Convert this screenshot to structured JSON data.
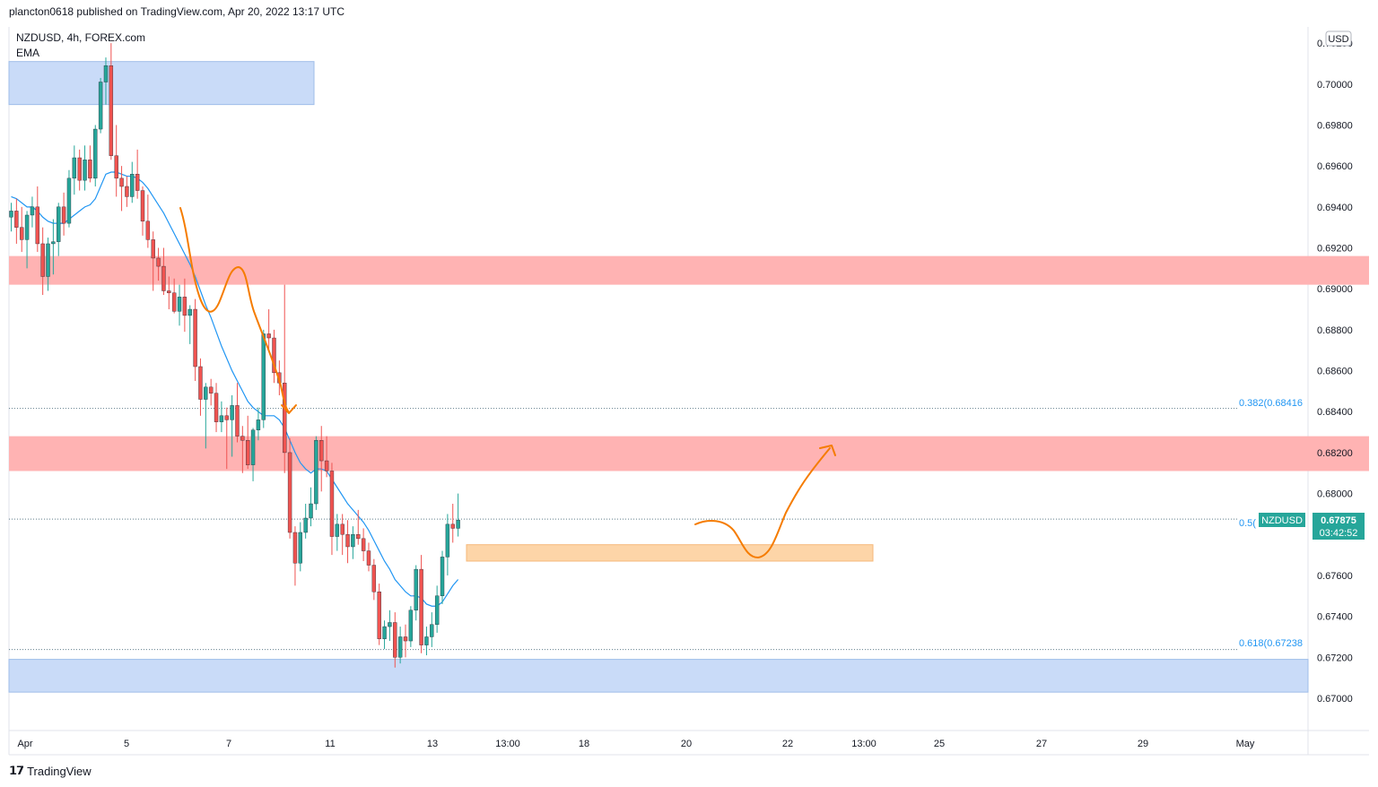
{
  "header": {
    "published": "plancton0618 published on TradingView.com, Apr 20, 2022 13:17 UTC"
  },
  "chart_title": {
    "symbol_line": "NZDUSD, 4h, FOREX.com",
    "indicator": "EMA"
  },
  "axis": {
    "currency_badge": "USD"
  },
  "footer": {
    "logo_text": "TradingView"
  },
  "price_label": {
    "symbol": "NZDUSD",
    "price": "0.67875",
    "countdown": "03:42:52"
  },
  "fib_labels": {
    "f382": "0.382(0.68416",
    "f5": "0.5(",
    "f618": "0.618(0.67238"
  },
  "colors": {
    "bull": "#26a69a",
    "bear": "#ef5350",
    "ema": "#2196f3",
    "arrow": "#f57c00",
    "zone_red": "#ffb3b3",
    "zone_blue": "#c9dbf8",
    "zone_orange": "#fdd5a8"
  },
  "chart_data": {
    "type": "candlestick",
    "symbol": "NZDUSD",
    "timeframe": "4h",
    "source": "FOREX.com",
    "ylim": [
      0.669,
      0.7025
    ],
    "y_ticks": [
      "0.70000",
      "0.69800",
      "0.69600",
      "0.69400",
      "0.69200",
      "0.69000",
      "0.68800",
      "0.68600",
      "0.68400",
      "0.68200",
      "0.68000",
      "0.67600",
      "0.67400",
      "0.67200",
      "0.67000"
    ],
    "y_top_partial": "0.70200",
    "x_ticks": [
      "Apr",
      "5",
      "7",
      "11",
      "13",
      "13:00",
      "18",
      "20",
      "22",
      "13:00",
      "25",
      "27",
      "29",
      "May"
    ],
    "fib_levels": [
      {
        "label": "0.382",
        "value": 0.68416
      },
      {
        "label": "0.5",
        "value": 0.67875
      },
      {
        "label": "0.618",
        "value": 0.67238
      }
    ],
    "zones": [
      {
        "kind": "supply",
        "from": 0.6902,
        "to": 0.6916
      },
      {
        "kind": "supply",
        "from": 0.6811,
        "to": 0.6828
      },
      {
        "kind": "demand",
        "from": 0.699,
        "to": 0.7011
      },
      {
        "kind": "demand",
        "from": 0.6703,
        "to": 0.6719
      },
      {
        "kind": "support",
        "from": 0.6767,
        "to": 0.6775
      }
    ],
    "candles": [
      [
        0.6935,
        0.6942,
        0.6928,
        0.6938
      ],
      [
        0.6938,
        0.6944,
        0.6922,
        0.693
      ],
      [
        0.693,
        0.694,
        0.6918,
        0.6924
      ],
      [
        0.6924,
        0.6938,
        0.691,
        0.6936
      ],
      [
        0.6936,
        0.6945,
        0.693,
        0.694
      ],
      [
        0.694,
        0.695,
        0.6918,
        0.6922
      ],
      [
        0.6922,
        0.693,
        0.6897,
        0.6906
      ],
      [
        0.6906,
        0.6925,
        0.6899,
        0.6922
      ],
      [
        0.6922,
        0.6934,
        0.6907,
        0.6923
      ],
      [
        0.6923,
        0.6942,
        0.6916,
        0.694
      ],
      [
        0.694,
        0.6947,
        0.6926,
        0.6932
      ],
      [
        0.6932,
        0.6958,
        0.693,
        0.6954
      ],
      [
        0.6954,
        0.697,
        0.6946,
        0.6964
      ],
      [
        0.6964,
        0.6968,
        0.6948,
        0.6953
      ],
      [
        0.6953,
        0.697,
        0.6948,
        0.6963
      ],
      [
        0.6963,
        0.697,
        0.6952,
        0.6954
      ],
      [
        0.6954,
        0.698,
        0.695,
        0.6978
      ],
      [
        0.6978,
        0.7003,
        0.6976,
        0.7001
      ],
      [
        0.7001,
        0.7013,
        0.699,
        0.7009
      ],
      [
        0.7009,
        0.702,
        0.6963,
        0.6965
      ],
      [
        0.6965,
        0.698,
        0.6945,
        0.6954
      ],
      [
        0.6954,
        0.696,
        0.6938,
        0.695
      ],
      [
        0.695,
        0.6955,
        0.694,
        0.6945
      ],
      [
        0.6945,
        0.6962,
        0.6942,
        0.6956
      ],
      [
        0.6956,
        0.6968,
        0.6944,
        0.6948
      ],
      [
        0.6948,
        0.695,
        0.6926,
        0.6933
      ],
      [
        0.6933,
        0.6946,
        0.692,
        0.6924
      ],
      [
        0.6924,
        0.6928,
        0.6899,
        0.6915
      ],
      [
        0.6915,
        0.692,
        0.6904,
        0.6911
      ],
      [
        0.6911,
        0.692,
        0.6897,
        0.6899
      ],
      [
        0.6899,
        0.6906,
        0.689,
        0.6898
      ],
      [
        0.6898,
        0.6905,
        0.6888,
        0.6889
      ],
      [
        0.6889,
        0.6902,
        0.6882,
        0.6896
      ],
      [
        0.6896,
        0.6905,
        0.6879,
        0.6887
      ],
      [
        0.6887,
        0.6892,
        0.6873,
        0.689
      ],
      [
        0.689,
        0.6895,
        0.6855,
        0.6862
      ],
      [
        0.6862,
        0.6866,
        0.6838,
        0.6846
      ],
      [
        0.6846,
        0.6854,
        0.6822,
        0.6852
      ],
      [
        0.6852,
        0.6856,
        0.6843,
        0.6849
      ],
      [
        0.6849,
        0.6854,
        0.683,
        0.6835
      ],
      [
        0.6835,
        0.6845,
        0.683,
        0.6838
      ],
      [
        0.6838,
        0.6842,
        0.6812,
        0.6836
      ],
      [
        0.6836,
        0.6848,
        0.6818,
        0.6843
      ],
      [
        0.6843,
        0.6854,
        0.6825,
        0.6828
      ],
      [
        0.6828,
        0.6833,
        0.681,
        0.6826
      ],
      [
        0.6826,
        0.6838,
        0.6812,
        0.6814
      ],
      [
        0.6814,
        0.6832,
        0.6806,
        0.6831
      ],
      [
        0.6831,
        0.6842,
        0.6826,
        0.6836
      ],
      [
        0.6836,
        0.688,
        0.6832,
        0.6878
      ],
      [
        0.6878,
        0.689,
        0.6869,
        0.6876
      ],
      [
        0.6876,
        0.688,
        0.6854,
        0.6859
      ],
      [
        0.6859,
        0.6865,
        0.6848,
        0.6854
      ],
      [
        0.6854,
        0.6902,
        0.681,
        0.682
      ],
      [
        0.682,
        0.6827,
        0.6778,
        0.6781
      ],
      [
        0.6781,
        0.6784,
        0.6755,
        0.6766
      ],
      [
        0.6766,
        0.6786,
        0.6762,
        0.6781
      ],
      [
        0.6781,
        0.6795,
        0.6778,
        0.6788
      ],
      [
        0.6788,
        0.6803,
        0.6784,
        0.6795
      ],
      [
        0.6795,
        0.6828,
        0.6792,
        0.6826
      ],
      [
        0.6826,
        0.6833,
        0.6801,
        0.6816
      ],
      [
        0.6816,
        0.6828,
        0.6808,
        0.6811
      ],
      [
        0.6811,
        0.6815,
        0.677,
        0.6779
      ],
      [
        0.6779,
        0.679,
        0.6772,
        0.6785
      ],
      [
        0.6785,
        0.679,
        0.677,
        0.678
      ],
      [
        0.678,
        0.6787,
        0.6766,
        0.6774
      ],
      [
        0.6774,
        0.6784,
        0.6768,
        0.678
      ],
      [
        0.678,
        0.6792,
        0.6775,
        0.6778
      ],
      [
        0.6778,
        0.6783,
        0.6767,
        0.6772
      ],
      [
        0.6772,
        0.6776,
        0.6762,
        0.6765
      ],
      [
        0.6765,
        0.6768,
        0.6748,
        0.6752
      ],
      [
        0.6752,
        0.6756,
        0.6726,
        0.6729
      ],
      [
        0.6729,
        0.6738,
        0.6724,
        0.6735
      ],
      [
        0.6735,
        0.6743,
        0.6728,
        0.6737
      ],
      [
        0.6737,
        0.6742,
        0.6715,
        0.672
      ],
      [
        0.672,
        0.6735,
        0.6717,
        0.673
      ],
      [
        0.673,
        0.6736,
        0.672,
        0.6728
      ],
      [
        0.6728,
        0.6745,
        0.6725,
        0.6743
      ],
      [
        0.6743,
        0.6765,
        0.6738,
        0.6763
      ],
      [
        0.6763,
        0.677,
        0.6722,
        0.6726
      ],
      [
        0.6726,
        0.6735,
        0.6721,
        0.673
      ],
      [
        0.673,
        0.6742,
        0.6725,
        0.6736
      ],
      [
        0.6736,
        0.6755,
        0.6732,
        0.675
      ],
      [
        0.675,
        0.6772,
        0.6746,
        0.6769
      ],
      [
        0.6769,
        0.679,
        0.676,
        0.6785
      ],
      [
        0.6785,
        0.6795,
        0.6776,
        0.6783
      ],
      [
        0.6783,
        0.68,
        0.6779,
        0.6787
      ]
    ],
    "ema": [
      0.6945,
      0.6944,
      0.6942,
      0.694,
      0.694,
      0.6938,
      0.6935,
      0.6933,
      0.6932,
      0.6932,
      0.6932,
      0.6934,
      0.6936,
      0.6938,
      0.694,
      0.6941,
      0.6944,
      0.695,
      0.6956,
      0.6957,
      0.6957,
      0.6956,
      0.6955,
      0.6955,
      0.6954,
      0.6952,
      0.6949,
      0.6945,
      0.6941,
      0.6937,
      0.6932,
      0.6927,
      0.6922,
      0.6917,
      0.6912,
      0.6906,
      0.6899,
      0.6892,
      0.6886,
      0.6879,
      0.6872,
      0.6866,
      0.686,
      0.6855,
      0.685,
      0.6845,
      0.6842,
      0.684,
      0.6838,
      0.6838,
      0.6838,
      0.6836,
      0.6832,
      0.6826,
      0.682,
      0.6815,
      0.6812,
      0.681,
      0.6812,
      0.6812,
      0.6811,
      0.6807,
      0.6803,
      0.6799,
      0.6795,
      0.6792,
      0.6789,
      0.6786,
      0.6782,
      0.6777,
      0.6772,
      0.6767,
      0.6763,
      0.6758,
      0.6755,
      0.6752,
      0.675,
      0.675,
      0.6749,
      0.6746,
      0.6745,
      0.6745,
      0.6747,
      0.6751,
      0.6755,
      0.6758
    ]
  }
}
